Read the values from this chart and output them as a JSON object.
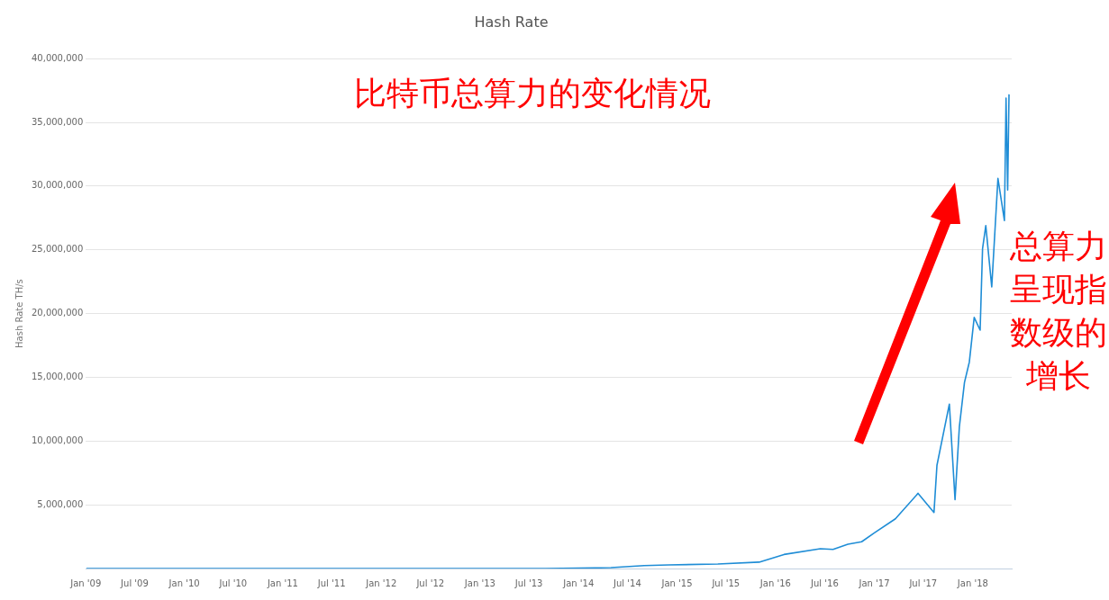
{
  "chart_data": {
    "type": "line",
    "title": "Hash Rate",
    "ylabel": "Hash Rate TH/s",
    "annotations": [
      "比特币总算力的变化情况",
      "总算力呈现指数级的增长"
    ],
    "series": [
      {
        "color": "#1f8dd6",
        "x": [
          "2009-01-03",
          "2010-06-01",
          "2012-01-01",
          "2013-01-01",
          "2013-09-01",
          "2014-01-01",
          "2014-05-01",
          "2014-09-01",
          "2014-12-01",
          "2015-06-01",
          "2015-11-01",
          "2016-02-01",
          "2016-06-15",
          "2016-08-01",
          "2016-09-25",
          "2016-11-15",
          "2017-01-01",
          "2017-03-20",
          "2017-06-12",
          "2017-08-10",
          "2017-08-21",
          "2017-10-06",
          "2017-10-27",
          "2017-11-12",
          "2017-12-01",
          "2017-12-19",
          "2018-01-06",
          "2018-01-28",
          "2018-02-06",
          "2018-02-18",
          "2018-03-12",
          "2018-04-04",
          "2018-04-28",
          "2018-05-04",
          "2018-05-10",
          "2018-05-15"
        ],
        "values": [
          0,
          0,
          0,
          0,
          0,
          30000,
          70000,
          230000,
          280000,
          350000,
          500000,
          1100000,
          1550000,
          1500000,
          1900000,
          2100000,
          2800000,
          3900000,
          5900000,
          4400000,
          8100000,
          12900000,
          5400000,
          11100000,
          14600000,
          16200000,
          19700000,
          18700000,
          25100000,
          26900000,
          22100000,
          30600000,
          27300000,
          36900000,
          29700000,
          37200000
        ]
      }
    ],
    "xlim": [
      "2009-01-01",
      "2018-05-25"
    ],
    "xticks": [
      {
        "value": "2009-01-01",
        "label": "Jan '09"
      },
      {
        "value": "2009-07-01",
        "label": "Jul '09"
      },
      {
        "value": "2010-01-01",
        "label": "Jan '10"
      },
      {
        "value": "2010-07-01",
        "label": "Jul '10"
      },
      {
        "value": "2011-01-01",
        "label": "Jan '11"
      },
      {
        "value": "2011-07-01",
        "label": "Jul '11"
      },
      {
        "value": "2012-01-01",
        "label": "Jan '12"
      },
      {
        "value": "2012-07-01",
        "label": "Jul '12"
      },
      {
        "value": "2013-01-01",
        "label": "Jan '13"
      },
      {
        "value": "2013-07-01",
        "label": "Jul '13"
      },
      {
        "value": "2014-01-01",
        "label": "Jan '14"
      },
      {
        "value": "2014-07-01",
        "label": "Jul '14"
      },
      {
        "value": "2015-01-01",
        "label": "Jan '15"
      },
      {
        "value": "2015-07-01",
        "label": "Jul '15"
      },
      {
        "value": "2016-01-01",
        "label": "Jan '16"
      },
      {
        "value": "2016-07-01",
        "label": "Jul '16"
      },
      {
        "value": "2017-01-01",
        "label": "Jan '17"
      },
      {
        "value": "2017-07-01",
        "label": "Jul '17"
      },
      {
        "value": "2018-01-01",
        "label": "Jan '18"
      }
    ],
    "ylim": [
      0,
      40000000
    ],
    "yticks": [
      {
        "value": 5000000,
        "label": "5,000,000"
      },
      {
        "value": 10000000,
        "label": "10,000,000"
      },
      {
        "value": 15000000,
        "label": "15,000,000"
      },
      {
        "value": 20000000,
        "label": "20,000,000"
      },
      {
        "value": 25000000,
        "label": "25,000,000"
      },
      {
        "value": 30000000,
        "label": "30,000,000"
      },
      {
        "value": 35000000,
        "label": "35,000,000"
      },
      {
        "value": 40000000,
        "label": "40,000,000"
      }
    ],
    "grid": "y",
    "legend": false,
    "marker": "none",
    "line_style": "solid"
  }
}
